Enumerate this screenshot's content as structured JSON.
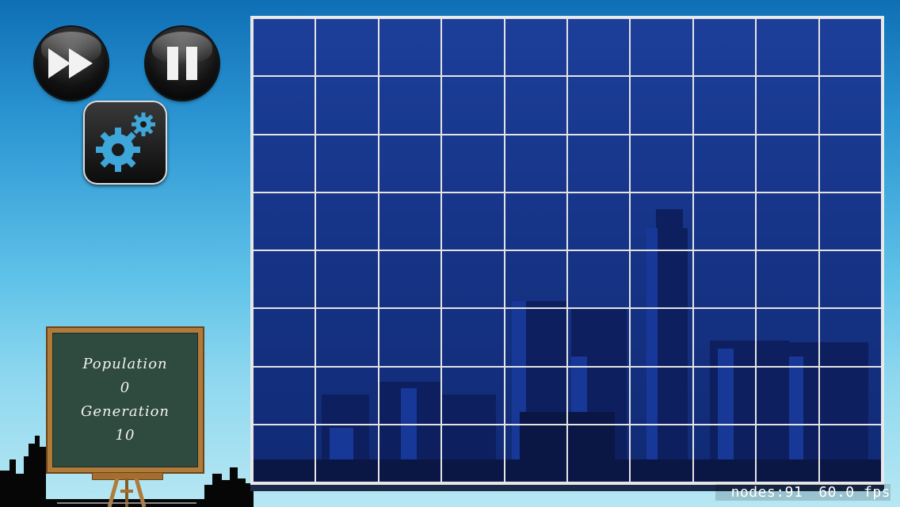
{
  "controls": {
    "fast_forward_icon": "fast-forward-icon",
    "pause_icon": "pause-icon",
    "settings_icon": "gears-icon"
  },
  "stats": {
    "population_label": "Population",
    "population_value": "0",
    "generation_label": "Generation",
    "generation_value": "10"
  },
  "board": {
    "columns": 10,
    "rows": 8,
    "alive_cells": []
  },
  "debug": {
    "nodes": "nodes:91",
    "fps": "60.0 fps"
  },
  "colors": {
    "gear_blue": "#3ea6d8",
    "grid_line": "#e4e4e4",
    "board_bg": "#17358a",
    "chalkboard": "#2f4a3e",
    "frame_wood": "#b07a3a"
  }
}
